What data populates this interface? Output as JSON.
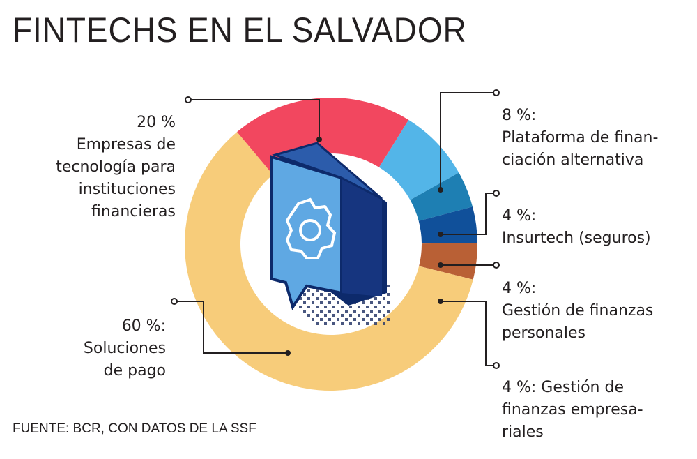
{
  "title": "FINTECHS EN EL SALVADOR",
  "source": "FUENTE: BCR, CON DATOS DE LA SSF",
  "chart_data": {
    "type": "pie",
    "title": "FINTECHS EN EL SALVADOR",
    "unit": "%",
    "slices": [
      {
        "label": "Empresas de tecnología para instituciones financieras",
        "value": 20,
        "pct_label": "20 %",
        "text": "Empresas de\ntecnología para\ninstituciones\nfinancieras",
        "color": "#f2475f"
      },
      {
        "label": "Plataforma de financiación alternativa",
        "value": 8,
        "pct_label": "8 %:",
        "text": "Plataforma de finan-\nciación alternativa",
        "color": "#53b5e8"
      },
      {
        "label": "Insurtech (seguros)",
        "value": 4,
        "pct_label": "4 %:",
        "text": "Insurtech (seguros)",
        "color": "#1e7fb3"
      },
      {
        "label": "Gestión de finanzas personales",
        "value": 4,
        "pct_label": "4 %:",
        "text": "Gestión de finanzas\npersonales",
        "color": "#10509a"
      },
      {
        "label": "Gestión de finanzas empresariales",
        "value": 4,
        "pct_label": "4 %: Gestión de",
        "text": "finanzas empresa-\nriales",
        "color": "#b96035"
      },
      {
        "label": "Soluciones de pago",
        "value": 60,
        "pct_label": "60 %:",
        "text": "Soluciones\nde pago",
        "color": "#f7cc7a"
      }
    ]
  },
  "icon": {
    "name": "gear-icon",
    "colors": {
      "face": "#5fa8e3",
      "side": "#0d2a6b",
      "shadow": "#2a3a6a"
    }
  }
}
